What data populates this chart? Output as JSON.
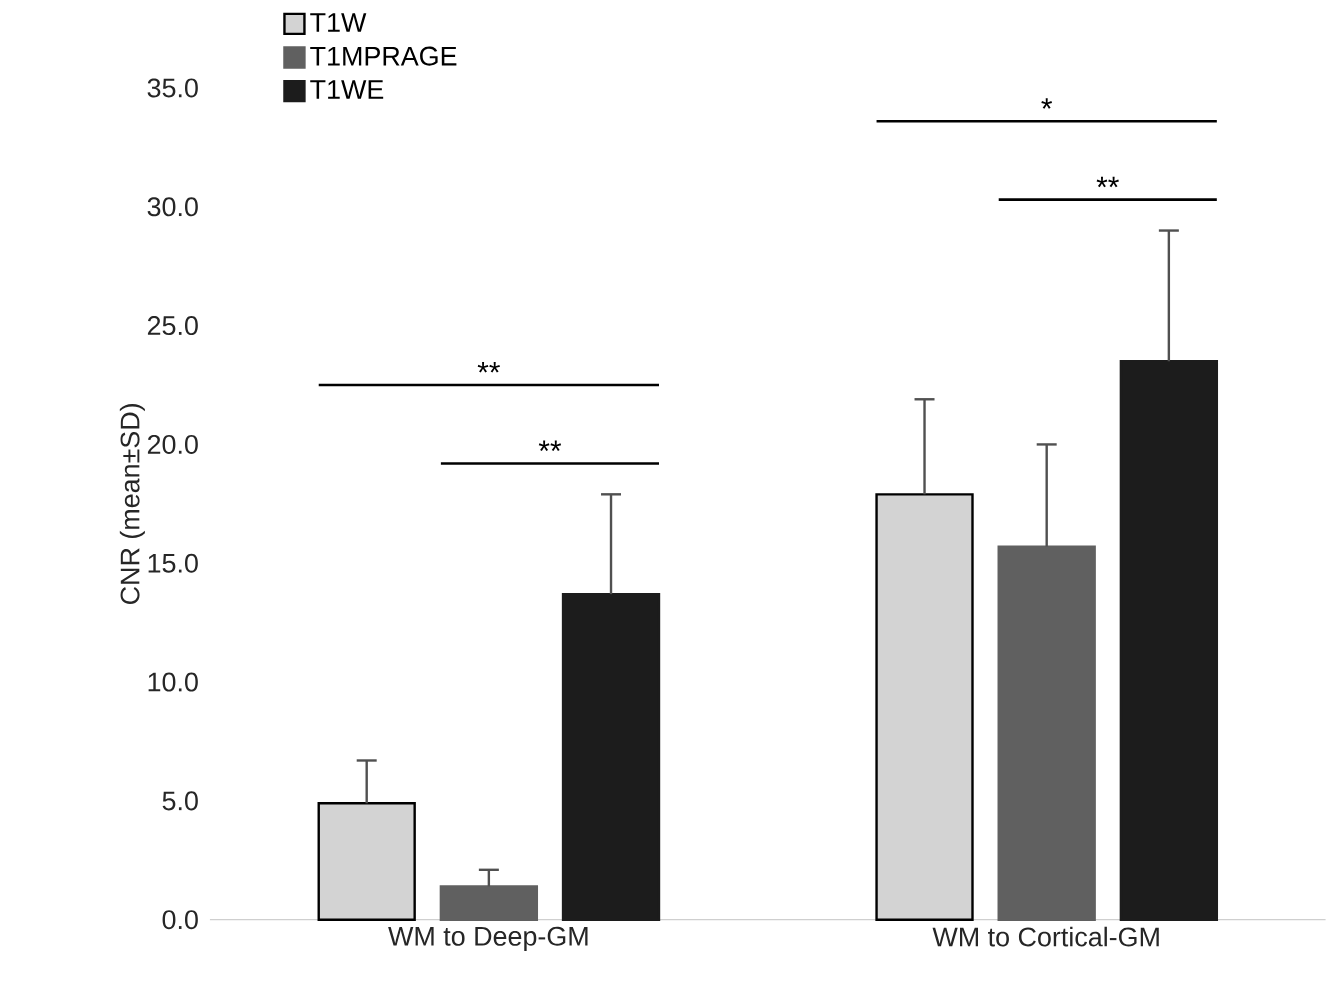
{
  "chart_data": {
    "type": "bar",
    "ylabel": "CNR (mean±SD)",
    "categories": [
      "WM to Deep-GM",
      "WM to Cortical-GM"
    ],
    "series": [
      {
        "name": "T1W",
        "color": "#d3d3d3",
        "values": [
          4.9,
          17.9
        ],
        "errors": [
          [
            4.9,
            6.7
          ],
          [
            17.9,
            21.9
          ]
        ]
      },
      {
        "name": "T1MPRAGE",
        "color": "#606060",
        "values": [
          1.4,
          15.7
        ],
        "errors": [
          [
            1.4,
            2.1
          ],
          [
            15.7,
            20.0
          ]
        ]
      },
      {
        "name": "T1WE",
        "color": "#1c1c1c",
        "values": [
          13.7,
          23.5
        ],
        "errors": [
          [
            13.7,
            17.9
          ],
          [
            23.5,
            29.0
          ]
        ]
      }
    ],
    "ylim": [
      0,
      35
    ],
    "yticks": [
      {
        "value": 0,
        "label": "0.0"
      },
      {
        "value": 5,
        "label": "5.0"
      },
      {
        "value": 10,
        "label": "10.0"
      },
      {
        "value": 15,
        "label": "15.0"
      },
      {
        "value": 20,
        "label": "20.0"
      },
      {
        "value": 25,
        "label": "25.0"
      },
      {
        "value": 30,
        "label": "30.0"
      },
      {
        "value": 35,
        "label": "35.0"
      }
    ],
    "legend": "top left",
    "grid": false,
    "annotations": [
      "**",
      "**",
      "*",
      "**"
    ]
  }
}
